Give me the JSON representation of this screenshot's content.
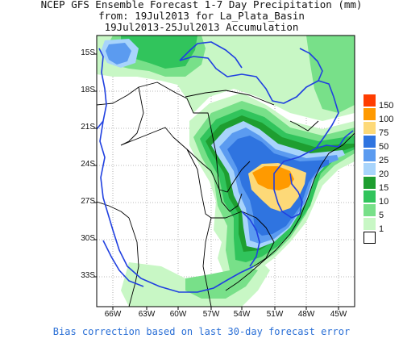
{
  "title": {
    "line1": "NCEP GFS Ensemble Forecast 1-7 Day Precipitation (mm)",
    "line2": "from: 19Jul2013  for La_Plata_Basin",
    "line3": "19Jul2013-25Jul2013 Accumulation"
  },
  "footer": "Bias correction based on last 30-day forecast error",
  "axes": {
    "lat_labels": [
      "15S",
      "18S",
      "21S",
      "24S",
      "27S",
      "30S",
      "33S"
    ],
    "lon_labels": [
      "66W",
      "63W",
      "60W",
      "57W",
      "54W",
      "51W",
      "48W",
      "45W"
    ]
  },
  "legend": {
    "items": [
      {
        "label": "150",
        "color": "#ff3d00"
      },
      {
        "label": "100",
        "color": "#ff9a00"
      },
      {
        "label": "75",
        "color": "#fdd978"
      },
      {
        "label": "50",
        "color": "#2f74e0"
      },
      {
        "label": "25",
        "color": "#5b9bf0"
      },
      {
        "label": "20",
        "color": "#a8d4fb"
      },
      {
        "label": "15",
        "color": "#1e9e30"
      },
      {
        "label": "10",
        "color": "#31c45c"
      },
      {
        "label": "5",
        "color": "#78e089"
      },
      {
        "label": "1",
        "color": "#c8f7c5"
      },
      {
        "label": "",
        "color": "#ffffff"
      }
    ]
  },
  "colors": {
    "basin_outline": "#2040e0",
    "borders": "#000000",
    "footer_text": "#2a6fd6"
  }
}
